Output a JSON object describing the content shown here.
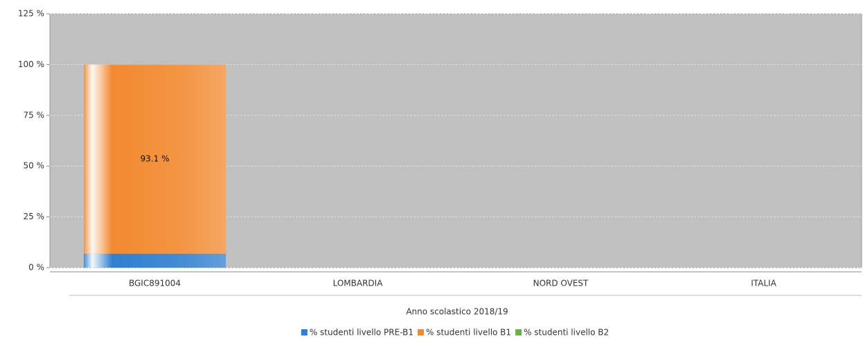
{
  "chart_data": {
    "type": "stacked_bar",
    "x_label": "Anno scolastico 2018/19",
    "categories": [
      "BGIC891004",
      "LOMBARDIA",
      "NORD OVEST",
      "ITALIA"
    ],
    "series": [
      {
        "name": "% studenti livello PRE-B1",
        "color": "#2f80d0",
        "values": [
          6.9,
          null,
          null,
          null
        ]
      },
      {
        "name": "% studenti livello B1",
        "color": "#f28a30",
        "values": [
          93.1,
          null,
          null,
          null
        ],
        "value_labels": [
          "93.1 %",
          null,
          null,
          null
        ]
      },
      {
        "name": "% studenti livello B2",
        "color": "#6ab04c",
        "values": [
          0,
          null,
          null,
          null
        ]
      }
    ],
    "ylim": [
      0,
      125
    ],
    "yticks": [
      {
        "value": 0,
        "label": "0 %"
      },
      {
        "value": 25,
        "label": "25 %"
      },
      {
        "value": 50,
        "label": "50 %"
      },
      {
        "value": 75,
        "label": "75 %"
      },
      {
        "value": 100,
        "label": "100 %"
      },
      {
        "value": 125,
        "label": "125 %"
      }
    ],
    "grid": true
  }
}
